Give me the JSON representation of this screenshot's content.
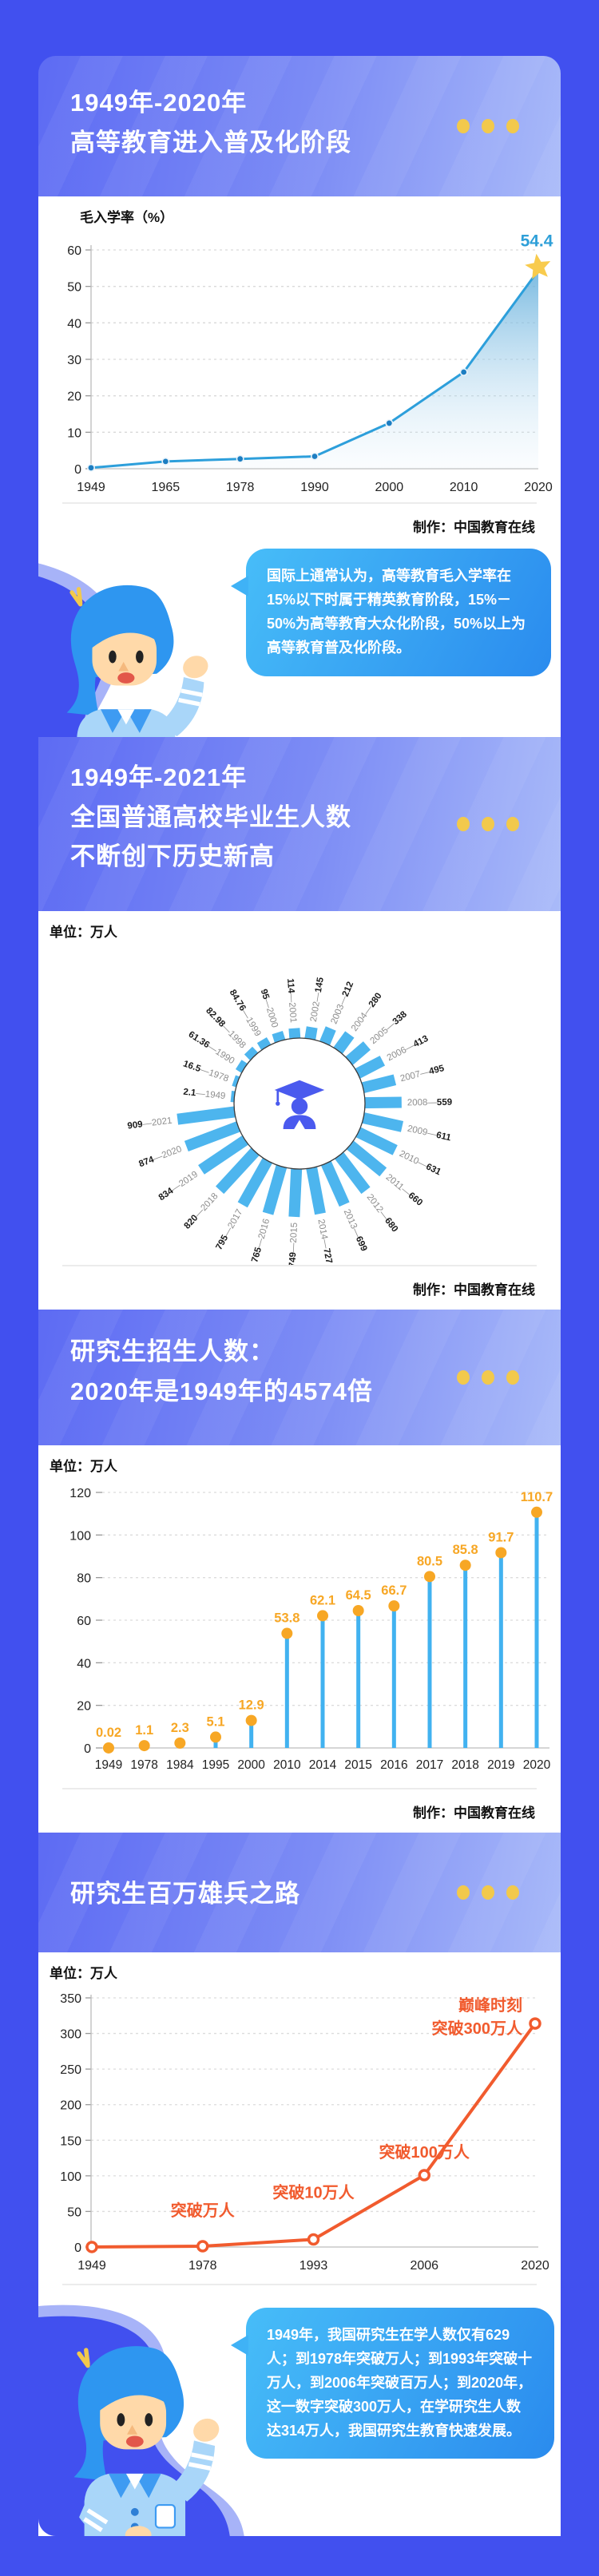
{
  "meta": {
    "credit": "制作：中国教育在线",
    "colors": {
      "page_bg": "#4150EF",
      "band_gradient_start": "#5d6bf3",
      "band_gradient_end": "#a9baf9",
      "accent_yellow": "#F2C94C",
      "chart_blue": "#2D9FDB",
      "bar_blue": "#4DB5EE",
      "orange": "#F7A725",
      "orange_red": "#F15B2E",
      "bubble_gradient_start": "#47bdf8",
      "bubble_gradient_end": "#2a8bee"
    }
  },
  "sections": [
    {
      "title_lines": [
        "1949年-2020年",
        "高等教育进入普及化阶段"
      ]
    },
    {
      "title_lines": [
        "1949年-2021年",
        "全国普通高校毕业生人数",
        "不断创下历史新高"
      ]
    },
    {
      "title_lines": [
        "研究生招生人数：",
        "2020年是1949年的4574倍"
      ]
    },
    {
      "title_lines": [
        "研究生百万雄兵之路"
      ]
    }
  ],
  "bubbles": [
    {
      "text": "国际上通常认为，高等教育毛入学率在15%以下时属于精英教育阶段，15%－50%为高等教育大众化阶段，50%以上为高等教育普及化阶段。"
    },
    {
      "text": "1949年，我国研究生在学人数仅有629人；到1978年突破万人；到1993年突破十万人，到2006年突破百万人；到2020年，这一数字突破300万人，在学研究生人数达314万人，我国研究生教育快速发展。"
    }
  ],
  "chart_data": [
    {
      "type": "area",
      "unit_label": "毛入学率（%）",
      "x": [
        "1949",
        "1965",
        "1978",
        "1990",
        "2000",
        "2010",
        "2020"
      ],
      "values": [
        0.26,
        2,
        2.7,
        3.4,
        12.5,
        26.5,
        54.4
      ],
      "ylim": [
        0,
        60
      ],
      "yticks": [
        0,
        10,
        20,
        30,
        40,
        50,
        60
      ],
      "grid": "dashed",
      "highlight": {
        "x": "2020",
        "label": "54.4",
        "marker": "star"
      },
      "line_color": "#2D9FDB",
      "label_color": "#2E9FD8",
      "star_color": "#F8CB4D"
    },
    {
      "type": "radial-bar",
      "unit_label": "单位：万人",
      "start_year_at_top": "2001",
      "center_icon": "graduate-icon",
      "bar_color": "#4DB5EE",
      "entries": [
        [
          "1949",
          2.1
        ],
        [
          "1978",
          16.5
        ],
        [
          "1990",
          61.36
        ],
        [
          "1998",
          82.98
        ],
        [
          "1999",
          84.76
        ],
        [
          "2000",
          95
        ],
        [
          "2001",
          114
        ],
        [
          "2002",
          145
        ],
        [
          "2003",
          212
        ],
        [
          "2004",
          280
        ],
        [
          "2005",
          338
        ],
        [
          "2006",
          413
        ],
        [
          "2007",
          495
        ],
        [
          "2008",
          559
        ],
        [
          "2009",
          611
        ],
        [
          "2010",
          631
        ],
        [
          "2011",
          660
        ],
        [
          "2012",
          680
        ],
        [
          "2013",
          699
        ],
        [
          "2014",
          727
        ],
        [
          "2015",
          749
        ],
        [
          "2016",
          765
        ],
        [
          "2017",
          795
        ],
        [
          "2018",
          820
        ],
        [
          "2019",
          834
        ],
        [
          "2020",
          874
        ],
        [
          "2021",
          909
        ]
      ]
    },
    {
      "type": "lollipop",
      "unit_label": "单位：万人",
      "categories": [
        "1949",
        "1978",
        "1984",
        "1995",
        "2000",
        "2010",
        "2014",
        "2015",
        "2016",
        "2017",
        "2018",
        "2019",
        "2020"
      ],
      "values": [
        0.02,
        1.1,
        2.3,
        5.1,
        12.9,
        53.8,
        62.1,
        64.5,
        66.7,
        80.5,
        85.8,
        91.7,
        110.7
      ],
      "ylim": [
        0,
        120
      ],
      "yticks": [
        0,
        20,
        40,
        60,
        80,
        100,
        120
      ],
      "grid": "dashed",
      "stem_color": "#41B2F0",
      "dot_color": "#F7A725",
      "value_color": "#F7A725"
    },
    {
      "type": "line",
      "unit_label": "单位：万人",
      "x": [
        "1949",
        "1978",
        "1993",
        "2006",
        "2020"
      ],
      "values": [
        0.06,
        1.1,
        10.7,
        101,
        314
      ],
      "ylim": [
        0,
        350
      ],
      "yticks": [
        0,
        50,
        100,
        150,
        200,
        250,
        300,
        350
      ],
      "grid": "dashed",
      "line_color": "#F15B2E",
      "annotations": [
        {
          "x": "1978",
          "text": "突破万人"
        },
        {
          "x": "1993",
          "text": "突破10万人"
        },
        {
          "x": "2006",
          "text": "突破100万人"
        },
        {
          "x": "2020",
          "text": "巅峰时刻\n突破300万人"
        }
      ]
    }
  ]
}
